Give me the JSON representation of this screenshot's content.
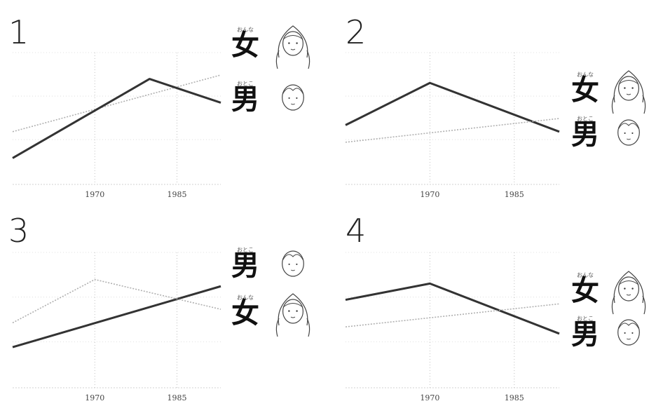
{
  "chart_data": [
    {
      "type": "line",
      "panel_label": "1",
      "x_ticks": [
        "1970",
        "1985"
      ],
      "grid": true,
      "legend_order": [
        "女",
        "男"
      ],
      "series": [
        {
          "name": "女",
          "ruby": "おんな",
          "style": "dashed",
          "color": "#b0b0b0",
          "points": [
            [
              1955,
              40
            ],
            [
              1993,
              83
            ]
          ]
        },
        {
          "name": "男",
          "ruby": "おとこ",
          "style": "solid",
          "color": "#333333",
          "points": [
            [
              1955,
              20
            ],
            [
              1980,
              80
            ],
            [
              1993,
              62
            ]
          ]
        }
      ]
    },
    {
      "type": "line",
      "panel_label": "2",
      "x_ticks": [
        "1970",
        "1985"
      ],
      "grid": true,
      "legend_order": [
        "女",
        "男"
      ],
      "series": [
        {
          "name": "女",
          "ruby": "おんな",
          "style": "solid",
          "color": "#333333",
          "points": [
            [
              1955,
              45
            ],
            [
              1970,
              77
            ],
            [
              1993,
              40
            ]
          ]
        },
        {
          "name": "男",
          "ruby": "おとこ",
          "style": "dashed",
          "color": "#b0b0b0",
          "points": [
            [
              1955,
              32
            ],
            [
              1993,
              50
            ]
          ]
        }
      ]
    },
    {
      "type": "line",
      "panel_label": "3",
      "x_ticks": [
        "1970",
        "1985"
      ],
      "grid": true,
      "legend_order": [
        "男",
        "女"
      ],
      "series": [
        {
          "name": "男",
          "ruby": "おとこ",
          "style": "solid",
          "color": "#333333",
          "points": [
            [
              1955,
              30
            ],
            [
              1993,
              75
            ]
          ]
        },
        {
          "name": "女",
          "ruby": "おんな",
          "style": "dashed",
          "color": "#b0b0b0",
          "points": [
            [
              1955,
              48
            ],
            [
              1970,
              80
            ],
            [
              1993,
              58
            ]
          ]
        }
      ]
    },
    {
      "type": "line",
      "panel_label": "4",
      "x_ticks": [
        "1970",
        "1985"
      ],
      "grid": true,
      "legend_order": [
        "女",
        "男"
      ],
      "series": [
        {
          "name": "女",
          "ruby": "おんな",
          "style": "solid",
          "color": "#333333",
          "points": [
            [
              1955,
              65
            ],
            [
              1970,
              77
            ],
            [
              1993,
              40
            ]
          ]
        },
        {
          "name": "男",
          "ruby": "おとこ",
          "style": "dashed",
          "color": "#b0b0b0",
          "points": [
            [
              1955,
              45
            ],
            [
              1993,
              62
            ]
          ]
        }
      ]
    }
  ],
  "legend_icons": {
    "女": "girl-face-icon",
    "男": "boy-face-icon"
  }
}
